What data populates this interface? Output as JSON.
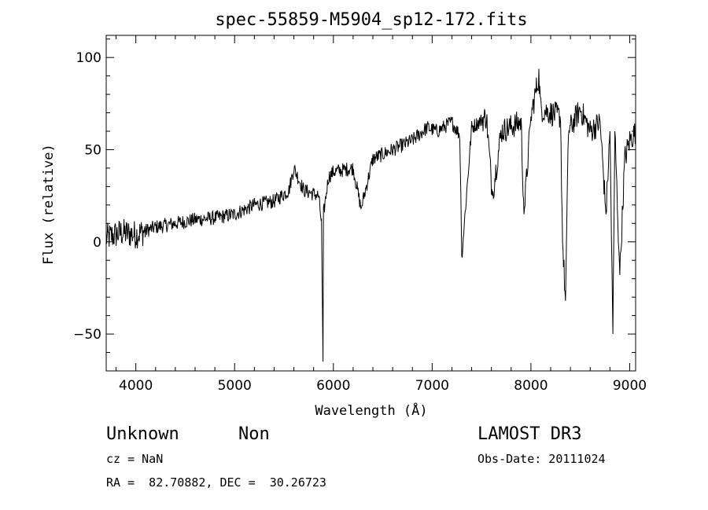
{
  "chart_data": {
    "type": "line",
    "title": "spec-55859-M5904_sp12-172.fits",
    "xlabel": "Wavelength (Å)",
    "ylabel": "Flux (relative)",
    "xlim": [
      3700,
      9060
    ],
    "ylim": [
      -70,
      112
    ],
    "xticks": [
      4000,
      5000,
      6000,
      7000,
      8000,
      9000
    ],
    "yticks": [
      -50,
      0,
      50,
      100
    ],
    "xtick_labels": [
      "4000",
      "5000",
      "6000",
      "7000",
      "8000",
      "9000"
    ],
    "ytick_labels": [
      "−50",
      "0",
      "50",
      "100"
    ],
    "grid": false,
    "series": [
      {
        "name": "spectrum",
        "x": [
          3700,
          3850,
          4000,
          4200,
          4400,
          4600,
          4800,
          5000,
          5200,
          5400,
          5550,
          5600,
          5700,
          5850,
          5880,
          5895,
          5900,
          5950,
          6000,
          6200,
          6280,
          6400,
          6600,
          6800,
          6950,
          7050,
          7200,
          7280,
          7300,
          7400,
          7550,
          7610,
          7700,
          7900,
          7930,
          8000,
          8080,
          8100,
          8200,
          8300,
          8320,
          8350,
          8380,
          8500,
          8600,
          8700,
          8760,
          8800,
          8830,
          8850,
          8900,
          8950,
          9000,
          9060
        ],
        "y": [
          2,
          5,
          4,
          8,
          10,
          12,
          13,
          15,
          20,
          22,
          28,
          40,
          28,
          25,
          10,
          -65,
          15,
          35,
          38,
          40,
          18,
          45,
          50,
          55,
          62,
          60,
          65,
          58,
          -8,
          62,
          68,
          25,
          60,
          65,
          15,
          68,
          90,
          72,
          70,
          68,
          0,
          -32,
          60,
          72,
          60,
          65,
          15,
          60,
          -50,
          60,
          -18,
          45,
          55,
          60
        ]
      }
    ],
    "annotations": {
      "object_class": "Unknown",
      "subclass": "Non",
      "survey": "LAMOST DR3",
      "cz": "cz = NaN",
      "obs_date": "Obs-Date: 20111024",
      "coords": "RA =  82.70882, DEC =  30.26723"
    }
  }
}
